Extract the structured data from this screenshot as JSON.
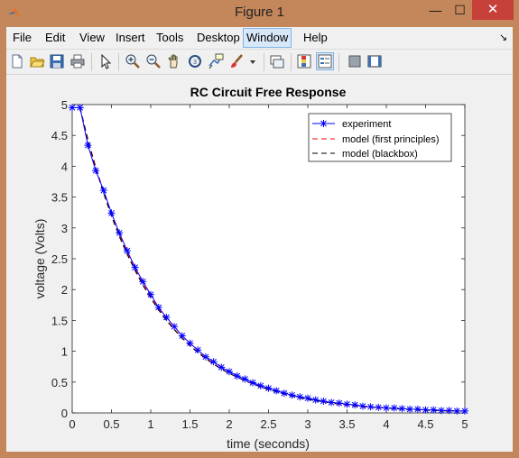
{
  "window": {
    "title": "Figure 1",
    "controls": {
      "minimize": "—",
      "maximize": "☐",
      "close": "✕"
    }
  },
  "menu": {
    "items": [
      "File",
      "Edit",
      "View",
      "Insert",
      "Tools",
      "Desktop",
      "Window",
      "Help"
    ],
    "active": "Window",
    "overflow_arrow": "↘"
  },
  "toolbar": {
    "icons": [
      "new-figure-icon",
      "open-file-icon",
      "save-icon",
      "print-icon",
      "pointer-icon",
      "zoom-in-icon",
      "zoom-out-icon",
      "pan-icon",
      "rotate-3d-icon",
      "data-cursor-icon",
      "brush-icon",
      "brush-dropdown-icon",
      "link-plot-icon",
      "insert-colorbar-icon",
      "insert-legend-icon",
      "hide-plot-tools-icon",
      "show-plot-tools-icon"
    ]
  },
  "chart_data": {
    "type": "line",
    "title": "RC Circuit Free Response",
    "xlabel": "time (seconds)",
    "ylabel": "voltage (Volts)",
    "xlim": [
      0,
      5
    ],
    "ylim": [
      0,
      5
    ],
    "xticks": [
      "0",
      "0.5",
      "1",
      "1.5",
      "2",
      "2.5",
      "3",
      "3.5",
      "4",
      "4.5",
      "5"
    ],
    "yticks": [
      "0",
      "0.5",
      "1",
      "1.5",
      "2",
      "2.5",
      "3",
      "3.5",
      "4",
      "4.5",
      "5"
    ],
    "grid": false,
    "legend_position": "top-right",
    "series": [
      {
        "name": "experiment",
        "color": "#0000ff",
        "line": "solid",
        "marker": "asterisk",
        "x": [
          0,
          0.1,
          0.2,
          0.3,
          0.4,
          0.5,
          0.6,
          0.7,
          0.8,
          0.9,
          1.0,
          1.1,
          1.2,
          1.3,
          1.4,
          1.5,
          1.6,
          1.7,
          1.8,
          1.9,
          2.0,
          2.1,
          2.2,
          2.3,
          2.4,
          2.5,
          2.6,
          2.7,
          2.8,
          2.9,
          3.0,
          3.1,
          3.2,
          3.3,
          3.4,
          3.5,
          3.6,
          3.7,
          3.8,
          3.9,
          4.0,
          4.1,
          4.2,
          4.3,
          4.4,
          4.5,
          4.6,
          4.7,
          4.8,
          4.9,
          5.0
        ],
        "y": [
          4.95,
          4.95,
          4.34,
          3.93,
          3.61,
          3.24,
          2.92,
          2.63,
          2.36,
          2.13,
          1.92,
          1.71,
          1.55,
          1.4,
          1.25,
          1.13,
          1.02,
          0.91,
          0.83,
          0.74,
          0.67,
          0.6,
          0.55,
          0.49,
          0.44,
          0.4,
          0.36,
          0.32,
          0.29,
          0.26,
          0.24,
          0.21,
          0.19,
          0.17,
          0.16,
          0.14,
          0.13,
          0.11,
          0.1,
          0.09,
          0.08,
          0.08,
          0.07,
          0.06,
          0.06,
          0.05,
          0.05,
          0.04,
          0.04,
          0.03,
          0.03
        ]
      },
      {
        "name": "model (first principles)",
        "color": "#ff0000",
        "line": "dashed",
        "x": [
          0.1,
          0.2,
          0.3,
          0.4,
          0.5,
          0.6,
          0.7,
          0.8,
          0.9,
          1.0,
          1.1,
          1.2,
          1.3,
          1.4,
          1.5,
          1.6,
          1.7,
          1.8,
          1.9,
          2.0,
          2.2,
          2.4,
          2.6,
          2.8,
          3.0,
          3.2,
          3.4,
          3.6,
          3.8,
          4.0,
          4.2,
          4.4,
          4.6,
          4.8,
          5.0
        ],
        "y": [
          4.95,
          4.44,
          3.99,
          3.59,
          3.22,
          2.89,
          2.6,
          2.33,
          2.1,
          1.88,
          1.69,
          1.52,
          1.36,
          1.22,
          1.1,
          0.99,
          0.89,
          0.8,
          0.71,
          0.64,
          0.52,
          0.42,
          0.34,
          0.27,
          0.22,
          0.18,
          0.14,
          0.11,
          0.09,
          0.08,
          0.06,
          0.05,
          0.04,
          0.03,
          0.03
        ]
      },
      {
        "name": "model (blackbox)",
        "color": "#000000",
        "line": "dashed",
        "x": [
          0.1,
          0.2,
          0.3,
          0.4,
          0.5,
          0.6,
          0.7,
          0.8,
          0.9,
          1.0,
          1.1,
          1.2,
          1.3,
          1.4,
          1.5,
          1.6,
          1.7,
          1.8,
          1.9,
          2.0,
          2.2,
          2.4,
          2.6,
          2.8,
          3.0,
          3.2,
          3.4,
          3.6,
          3.8,
          4.0,
          4.2,
          4.4,
          4.6,
          4.8,
          5.0
        ],
        "y": [
          4.95,
          4.42,
          3.96,
          3.56,
          3.19,
          2.86,
          2.57,
          2.31,
          2.07,
          1.86,
          1.67,
          1.5,
          1.35,
          1.21,
          1.09,
          0.98,
          0.88,
          0.79,
          0.71,
          0.64,
          0.52,
          0.42,
          0.34,
          0.27,
          0.22,
          0.18,
          0.15,
          0.12,
          0.1,
          0.08,
          0.06,
          0.05,
          0.04,
          0.03,
          0.03
        ]
      }
    ]
  }
}
